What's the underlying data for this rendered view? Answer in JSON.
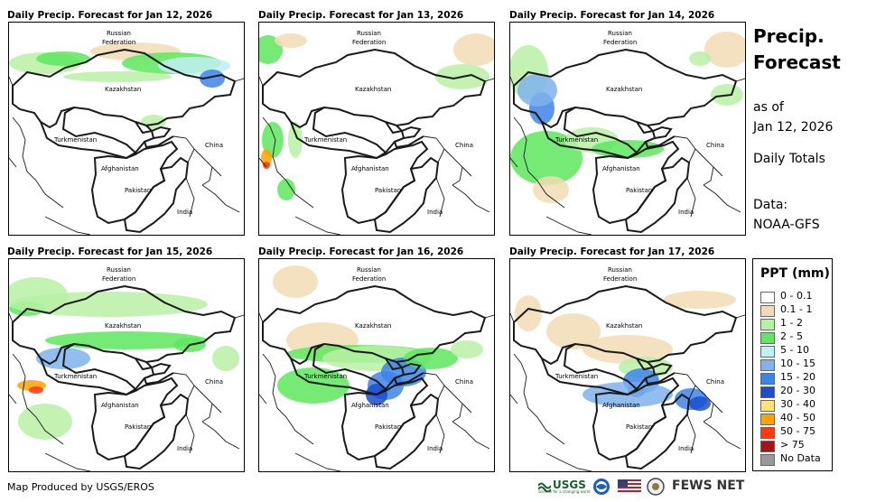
{
  "panels": [
    {
      "title": "Daily Precip. Forecast for Jan 12, 2026"
    },
    {
      "title": "Daily Precip. Forecast for Jan 13, 2026"
    },
    {
      "title": "Daily Precip. Forecast for Jan 14, 2026"
    },
    {
      "title": "Daily Precip. Forecast for Jan 15, 2026"
    },
    {
      "title": "Daily Precip. Forecast for Jan 16, 2026"
    },
    {
      "title": "Daily Precip. Forecast for Jan 17, 2026"
    }
  ],
  "country_labels": {
    "russia_1": "Russian",
    "russia_2": "Federation",
    "kazakhstan": "Kazakhstan",
    "turkmenistan": "Turkmenistan",
    "afghanistan": "Afghanistan",
    "pakistan": "Pakistan",
    "india": "India",
    "china": "China"
  },
  "sidebar": {
    "title_line1": "Precip.",
    "title_line2": "Forecast",
    "as_of_line1": "as of",
    "as_of_line2": "Jan 12, 2026",
    "daily_totals": "Daily Totals",
    "data_line1": "Data:",
    "data_line2": "NOAA-GFS"
  },
  "legend": {
    "title": "PPT (mm)",
    "items": [
      {
        "label": "0 - 0.1",
        "color": "#ffffff"
      },
      {
        "label": "0.1 - 1",
        "color": "#f2dcb5"
      },
      {
        "label": "1 - 2",
        "color": "#b9f0a6"
      },
      {
        "label": "2 - 5",
        "color": "#5de85d"
      },
      {
        "label": "5 - 10",
        "color": "#bff0f5"
      },
      {
        "label": "10 - 15",
        "color": "#7fb3ec"
      },
      {
        "label": "15 - 20",
        "color": "#3d84e8"
      },
      {
        "label": "20 - 30",
        "color": "#1b4fd0"
      },
      {
        "label": "30 - 40",
        "color": "#ffe37a"
      },
      {
        "label": "40 - 50",
        "color": "#ffa200"
      },
      {
        "label": "50 - 75",
        "color": "#ff3a12"
      },
      {
        "label": "> 75",
        "color": "#a81414"
      },
      {
        "label": "No Data",
        "color": "#999999"
      }
    ]
  },
  "footer": {
    "credit": "Map Produced by USGS/EROS",
    "usgs": "USGS",
    "usgs_tagline": "science for a changing world",
    "fews": "FEWS NET"
  }
}
